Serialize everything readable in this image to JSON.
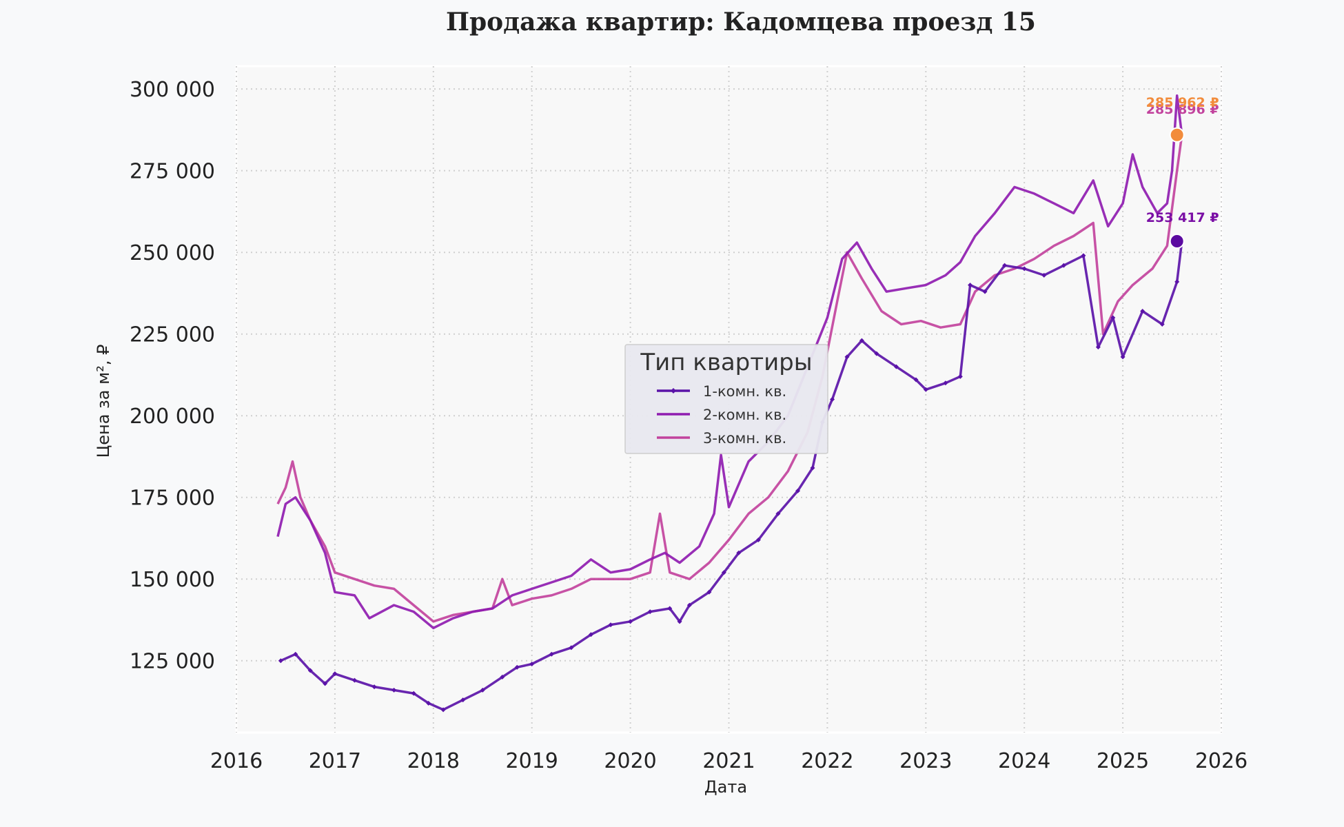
{
  "chart_data": {
    "type": "line",
    "title": "Продажа квартир: Кадомцева проезд 15",
    "xlabel": "Дата",
    "ylabel": "Цена за м², ₽",
    "xlim": [
      2016,
      2026
    ],
    "ylim": [
      103000,
      307000
    ],
    "x_ticks": [
      "2016",
      "2017",
      "2018",
      "2019",
      "2020",
      "2021",
      "2022",
      "2023",
      "2024",
      "2025",
      "2026"
    ],
    "y_ticks": [
      {
        "value": 125000,
        "label": "125 000"
      },
      {
        "value": 150000,
        "label": "150 000"
      },
      {
        "value": 175000,
        "label": "175 000"
      },
      {
        "value": 200000,
        "label": "200 000"
      },
      {
        "value": 225000,
        "label": "225 000"
      },
      {
        "value": 250000,
        "label": "250 000"
      },
      {
        "value": 275000,
        "label": "275 000"
      },
      {
        "value": 300000,
        "label": "300 000"
      }
    ],
    "grid": true,
    "legend_title": "Тип квартиры",
    "legend_position": "center",
    "series": [
      {
        "name": "1-комн. кв.",
        "color": "#5b13a8",
        "marker": "diamond",
        "points": [
          [
            2016.45,
            125000
          ],
          [
            2016.6,
            127000
          ],
          [
            2016.75,
            122000
          ],
          [
            2016.9,
            118000
          ],
          [
            2017.0,
            121000
          ],
          [
            2017.2,
            119000
          ],
          [
            2017.4,
            117000
          ],
          [
            2017.6,
            116000
          ],
          [
            2017.8,
            115000
          ],
          [
            2017.95,
            112000
          ],
          [
            2018.1,
            110000
          ],
          [
            2018.3,
            113000
          ],
          [
            2018.5,
            116000
          ],
          [
            2018.7,
            120000
          ],
          [
            2018.85,
            123000
          ],
          [
            2019.0,
            124000
          ],
          [
            2019.2,
            127000
          ],
          [
            2019.4,
            129000
          ],
          [
            2019.6,
            133000
          ],
          [
            2019.8,
            136000
          ],
          [
            2020.0,
            137000
          ],
          [
            2020.2,
            140000
          ],
          [
            2020.4,
            141000
          ],
          [
            2020.5,
            137000
          ],
          [
            2020.6,
            142000
          ],
          [
            2020.8,
            146000
          ],
          [
            2020.95,
            152000
          ],
          [
            2021.1,
            158000
          ],
          [
            2021.3,
            162000
          ],
          [
            2021.5,
            170000
          ],
          [
            2021.7,
            177000
          ],
          [
            2021.85,
            184000
          ],
          [
            2021.95,
            198000
          ],
          [
            2022.05,
            205000
          ],
          [
            2022.2,
            218000
          ],
          [
            2022.35,
            223000
          ],
          [
            2022.5,
            219000
          ],
          [
            2022.7,
            215000
          ],
          [
            2022.9,
            211000
          ],
          [
            2023.0,
            208000
          ],
          [
            2023.2,
            210000
          ],
          [
            2023.35,
            212000
          ],
          [
            2023.45,
            240000
          ],
          [
            2023.6,
            238000
          ],
          [
            2023.8,
            246000
          ],
          [
            2024.0,
            245000
          ],
          [
            2024.2,
            243000
          ],
          [
            2024.4,
            246000
          ],
          [
            2024.6,
            249000
          ],
          [
            2024.75,
            221000
          ],
          [
            2024.9,
            230000
          ],
          [
            2025.0,
            218000
          ],
          [
            2025.2,
            232000
          ],
          [
            2025.4,
            228000
          ],
          [
            2025.55,
            241000
          ],
          [
            2025.6,
            253417
          ]
        ]
      },
      {
        "name": "2-комн. кв.",
        "color": "#8f1cb0",
        "marker": "",
        "points": [
          [
            2016.42,
            163000
          ],
          [
            2016.5,
            173000
          ],
          [
            2016.6,
            175000
          ],
          [
            2016.75,
            168000
          ],
          [
            2016.9,
            158000
          ],
          [
            2017.0,
            146000
          ],
          [
            2017.2,
            145000
          ],
          [
            2017.35,
            138000
          ],
          [
            2017.6,
            142000
          ],
          [
            2017.8,
            140000
          ],
          [
            2018.0,
            135000
          ],
          [
            2018.2,
            138000
          ],
          [
            2018.4,
            140000
          ],
          [
            2018.6,
            141000
          ],
          [
            2018.8,
            145000
          ],
          [
            2019.0,
            147000
          ],
          [
            2019.2,
            149000
          ],
          [
            2019.4,
            151000
          ],
          [
            2019.6,
            156000
          ],
          [
            2019.8,
            152000
          ],
          [
            2020.0,
            153000
          ],
          [
            2020.2,
            156000
          ],
          [
            2020.35,
            158000
          ],
          [
            2020.5,
            155000
          ],
          [
            2020.7,
            160000
          ],
          [
            2020.85,
            170000
          ],
          [
            2020.92,
            188000
          ],
          [
            2021.0,
            172000
          ],
          [
            2021.2,
            186000
          ],
          [
            2021.4,
            192000
          ],
          [
            2021.6,
            200000
          ],
          [
            2021.8,
            215000
          ],
          [
            2022.0,
            230000
          ],
          [
            2022.15,
            248000
          ],
          [
            2022.3,
            253000
          ],
          [
            2022.45,
            245000
          ],
          [
            2022.6,
            238000
          ],
          [
            2022.8,
            239000
          ],
          [
            2023.0,
            240000
          ],
          [
            2023.2,
            243000
          ],
          [
            2023.35,
            247000
          ],
          [
            2023.5,
            255000
          ],
          [
            2023.7,
            262000
          ],
          [
            2023.9,
            270000
          ],
          [
            2024.1,
            268000
          ],
          [
            2024.3,
            265000
          ],
          [
            2024.5,
            262000
          ],
          [
            2024.7,
            272000
          ],
          [
            2024.85,
            258000
          ],
          [
            2025.0,
            265000
          ],
          [
            2025.1,
            280000
          ],
          [
            2025.2,
            270000
          ],
          [
            2025.35,
            262000
          ],
          [
            2025.45,
            265000
          ],
          [
            2025.5,
            275000
          ],
          [
            2025.55,
            298000
          ],
          [
            2025.6,
            285962
          ]
        ]
      },
      {
        "name": "3-комн. кв.",
        "color": "#c2439d",
        "marker": "",
        "points": [
          [
            2016.42,
            173000
          ],
          [
            2016.5,
            178000
          ],
          [
            2016.57,
            186000
          ],
          [
            2016.65,
            175000
          ],
          [
            2016.75,
            168000
          ],
          [
            2016.9,
            160000
          ],
          [
            2017.0,
            152000
          ],
          [
            2017.2,
            150000
          ],
          [
            2017.4,
            148000
          ],
          [
            2017.6,
            147000
          ],
          [
            2017.8,
            142000
          ],
          [
            2018.0,
            137000
          ],
          [
            2018.2,
            139000
          ],
          [
            2018.4,
            140000
          ],
          [
            2018.6,
            141000
          ],
          [
            2018.7,
            150000
          ],
          [
            2018.8,
            142000
          ],
          [
            2019.0,
            144000
          ],
          [
            2019.2,
            145000
          ],
          [
            2019.4,
            147000
          ],
          [
            2019.6,
            150000
          ],
          [
            2019.8,
            150000
          ],
          [
            2020.0,
            150000
          ],
          [
            2020.2,
            152000
          ],
          [
            2020.3,
            170000
          ],
          [
            2020.4,
            152000
          ],
          [
            2020.6,
            150000
          ],
          [
            2020.8,
            155000
          ],
          [
            2021.0,
            162000
          ],
          [
            2021.2,
            170000
          ],
          [
            2021.4,
            175000
          ],
          [
            2021.6,
            183000
          ],
          [
            2021.8,
            195000
          ],
          [
            2021.95,
            212000
          ],
          [
            2022.1,
            235000
          ],
          [
            2022.2,
            250000
          ],
          [
            2022.35,
            242000
          ],
          [
            2022.55,
            232000
          ],
          [
            2022.75,
            228000
          ],
          [
            2022.95,
            229000
          ],
          [
            2023.15,
            227000
          ],
          [
            2023.35,
            228000
          ],
          [
            2023.5,
            238000
          ],
          [
            2023.7,
            243000
          ],
          [
            2023.9,
            245000
          ],
          [
            2024.1,
            248000
          ],
          [
            2024.3,
            252000
          ],
          [
            2024.5,
            255000
          ],
          [
            2024.7,
            259000
          ],
          [
            2024.8,
            225000
          ],
          [
            2024.95,
            235000
          ],
          [
            2025.1,
            240000
          ],
          [
            2025.3,
            245000
          ],
          [
            2025.45,
            252000
          ],
          [
            2025.55,
            275000
          ],
          [
            2025.6,
            285896
          ]
        ]
      }
    ],
    "annotations": [
      {
        "label": "253 417 ₽",
        "x": 2025.55,
        "y": 253417,
        "color": "#7a0fa5"
      },
      {
        "label": "285 896 ₽",
        "x": 2025.55,
        "y": 285896,
        "color": "#c2439d"
      },
      {
        "label": "285 962 ₽",
        "x": 2025.55,
        "y": 285962,
        "color": "#f28c3c"
      }
    ],
    "endpoints": [
      {
        "x": 2025.55,
        "y": 253417,
        "color": "#5b0aa0"
      },
      {
        "x": 2025.55,
        "y": 285962,
        "color": "#f28c3c"
      }
    ]
  }
}
